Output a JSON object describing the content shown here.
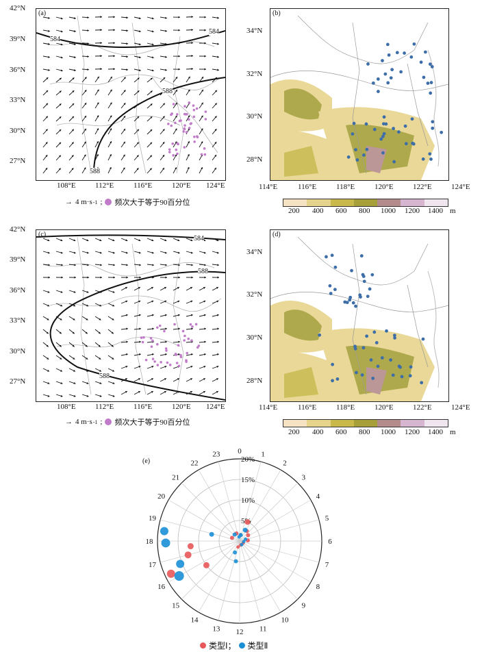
{
  "panel_labels": {
    "a": "(a)",
    "b": "(b)",
    "c": "(c)",
    "d": "(d)",
    "e": "(e)"
  },
  "wind_map_lat_ticks": [
    "42°N",
    "39°N",
    "36°N",
    "33°N",
    "30°N",
    "27°N"
  ],
  "wind_map_lon_ticks": [
    "108°E",
    "112°E",
    "116°E",
    "120°E",
    "124°E"
  ],
  "terrain_map_lat_ticks": [
    "34°N",
    "32°N",
    "30°N",
    "28°N"
  ],
  "terrain_map_lon_ticks": [
    "114°E",
    "116°E",
    "118°E",
    "120°E",
    "122°E",
    "124°E"
  ],
  "contours": {
    "a": [
      "584",
      "584",
      "588",
      "588"
    ],
    "c": [
      "584",
      "588",
      "588"
    ]
  },
  "wind_legend": {
    "arrow_label": "4 m·s",
    "arrow_label_sup": "-1",
    "separator": ";",
    "dot_label": "频次大于等于90百分位"
  },
  "colorbar": {
    "ticks": [
      "200",
      "400",
      "600",
      "800",
      "1000",
      "1200",
      "1400"
    ],
    "unit": "m",
    "colors": [
      "#f7e3c4",
      "#e7d48c",
      "#c8b94a",
      "#a7a03a",
      "#b58c8c",
      "#d5b5cf",
      "#efe6f0"
    ]
  },
  "polar": {
    "hour_labels": [
      "0",
      "1",
      "2",
      "3",
      "4",
      "5",
      "6",
      "7",
      "8",
      "9",
      "10",
      "11",
      "12",
      "13",
      "14",
      "15",
      "16",
      "17",
      "18",
      "19",
      "20",
      "21",
      "22",
      "23"
    ],
    "radial_labels": [
      "5%",
      "10%",
      "15%",
      "20%"
    ],
    "legend": {
      "type1": "类型Ⅰ；",
      "type2": "类型Ⅱ"
    },
    "colors": {
      "type1": "#e8585a",
      "type2": "#1a8fd6"
    }
  },
  "chart_data": {
    "type": "scatter",
    "title": "",
    "projection": "polar",
    "angle_axis": "hour (0-23)",
    "radius_axis": "frequency (%)",
    "rlim": [
      0,
      20
    ],
    "series": [
      {
        "name": "类型Ⅰ",
        "points": [
          {
            "hour": 16.3,
            "r": 18.5,
            "size": 12
          },
          {
            "hour": 17.0,
            "r": 13.0,
            "size": 10
          },
          {
            "hour": 17.6,
            "r": 12.0,
            "size": 9
          },
          {
            "hour": 15.6,
            "r": 10.0,
            "size": 9
          },
          {
            "hour": 1.5,
            "r": 5.0,
            "size": 8
          },
          {
            "hour": 2.4,
            "r": 3.0,
            "size": 6
          },
          {
            "hour": 3.7,
            "r": 2.5,
            "size": 6
          },
          {
            "hour": 5.7,
            "r": 2.0,
            "size": 6
          },
          {
            "hour": 19.5,
            "r": 2.0,
            "size": 6
          },
          {
            "hour": 22.5,
            "r": 2.0,
            "size": 6
          },
          {
            "hour": 0.5,
            "r": 1.5,
            "size": 5
          },
          {
            "hour": 13.0,
            "r": 1.5,
            "size": 5
          },
          {
            "hour": 11.0,
            "r": 1.0,
            "size": 5
          },
          {
            "hour": 8.0,
            "r": 1.0,
            "size": 5
          }
        ]
      },
      {
        "name": "类型Ⅱ",
        "points": [
          {
            "hour": 16.0,
            "r": 17.0,
            "size": 14
          },
          {
            "hour": 16.6,
            "r": 15.5,
            "size": 12
          },
          {
            "hour": 17.9,
            "r": 18.0,
            "size": 13
          },
          {
            "hour": 18.5,
            "r": 18.5,
            "size": 12
          },
          {
            "hour": 18.9,
            "r": 7.0,
            "size": 7
          },
          {
            "hour": 1.8,
            "r": 3.0,
            "size": 7
          },
          {
            "hour": 12.7,
            "r": 5.0,
            "size": 6
          },
          {
            "hour": 13.5,
            "r": 3.0,
            "size": 6
          },
          {
            "hour": 0.7,
            "r": 1.5,
            "size": 6
          },
          {
            "hour": 21.5,
            "r": 2.0,
            "size": 6
          },
          {
            "hour": 4.8,
            "r": 1.5,
            "size": 5
          },
          {
            "hour": 6.5,
            "r": 1.0,
            "size": 5
          },
          {
            "hour": 10.0,
            "r": 1.0,
            "size": 5
          },
          {
            "hour": 23.5,
            "r": 1.0,
            "size": 5
          }
        ]
      }
    ]
  }
}
